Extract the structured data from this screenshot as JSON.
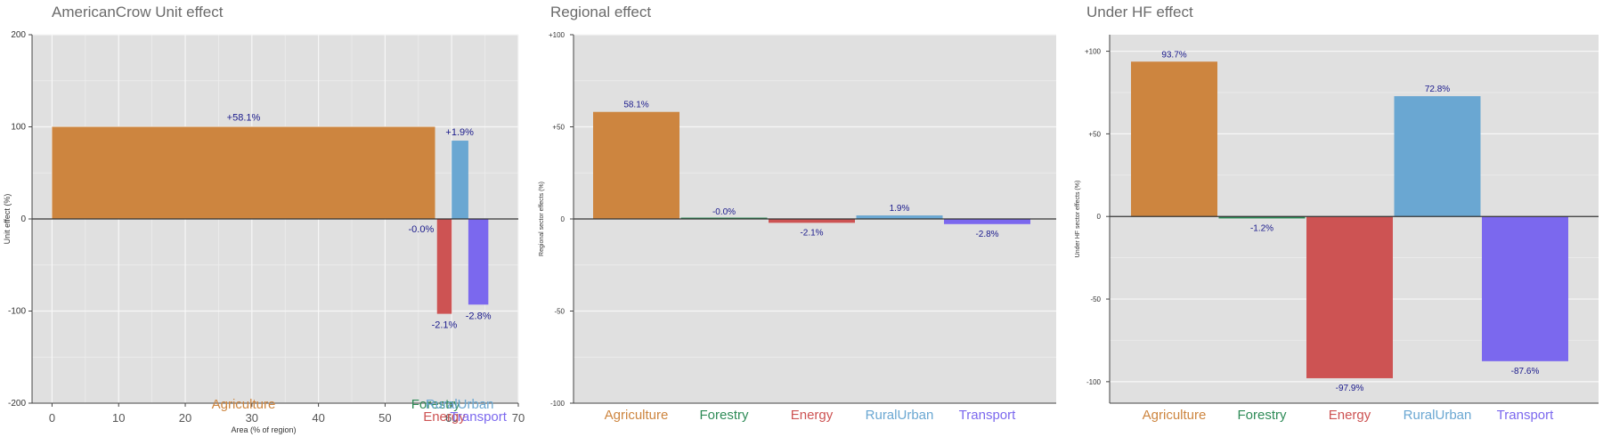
{
  "chart_data": [
    {
      "type": "bar",
      "title": "AmericanCrow Unit effect",
      "xlabel": "Area (% of region)",
      "ylabel": "Unit effect (%)",
      "xlim": [
        -3,
        70
      ],
      "ylim": [
        -200,
        200
      ],
      "xticks": [
        0,
        10,
        20,
        30,
        40,
        50,
        60,
        70
      ],
      "yticks": [
        200,
        100,
        0,
        -100,
        -200
      ],
      "categories": [
        "Agriculture",
        "Forestry",
        "Energy",
        "RuralUrban",
        "Transport"
      ],
      "series": [
        {
          "name": "Agriculture",
          "x_start": 0,
          "x_end": 57.5,
          "value": 100,
          "label": "+58.1%",
          "color": "#cd853f"
        },
        {
          "name": "Forestry",
          "x_start": 57.5,
          "x_end": 57.8,
          "value": -0.5,
          "label": "-0.0%",
          "color": "#2e8b57"
        },
        {
          "name": "Energy",
          "x_start": 57.8,
          "x_end": 60.0,
          "value": -103,
          "label": "-2.1%",
          "color": "#cd5353"
        },
        {
          "name": "RuralUrban",
          "x_start": 60.0,
          "x_end": 62.5,
          "value": 85,
          "label": "+1.9%",
          "color": "#6aa7d2"
        },
        {
          "name": "Transport",
          "x_start": 62.5,
          "x_end": 65.5,
          "value": -93,
          "label": "-2.8%",
          "color": "#7b68ee"
        }
      ]
    },
    {
      "type": "bar",
      "title": "Regional effect",
      "ylabel": "Regional sector effects (%)",
      "ylim": [
        -100,
        100
      ],
      "yticks": [
        100,
        50,
        0,
        -50,
        -100
      ],
      "ytick_labels": [
        "+100",
        "+50",
        "0",
        "-50",
        "-100"
      ],
      "categories": [
        "Agriculture",
        "Forestry",
        "Energy",
        "RuralUrban",
        "Transport"
      ],
      "values": [
        58.1,
        0,
        -2.1,
        1.9,
        -2.8
      ],
      "labels": [
        "58.1%",
        "-0.0%",
        "-2.1%",
        "1.9%",
        "-2.8%"
      ],
      "colors": [
        "#cd853f",
        "#2e8b57",
        "#cd5353",
        "#6aa7d2",
        "#7b68ee"
      ]
    },
    {
      "type": "bar",
      "title": "Under HF effect",
      "ylabel": "Under HF sector effects (%)",
      "ylim": [
        -113,
        110
      ],
      "yticks": [
        100,
        50,
        0,
        -50,
        -100
      ],
      "ytick_labels": [
        "+100",
        "+50",
        "0",
        "-50",
        "-100"
      ],
      "categories": [
        "Agriculture",
        "Forestry",
        "Energy",
        "RuralUrban",
        "Transport"
      ],
      "values": [
        93.7,
        -1.2,
        -97.9,
        72.8,
        -87.6
      ],
      "labels": [
        "93.7%",
        "-1.2%",
        "-97.9%",
        "72.8%",
        "-87.6%"
      ],
      "colors": [
        "#cd853f",
        "#2e8b57",
        "#cd5353",
        "#6aa7d2",
        "#7b68ee"
      ]
    }
  ]
}
